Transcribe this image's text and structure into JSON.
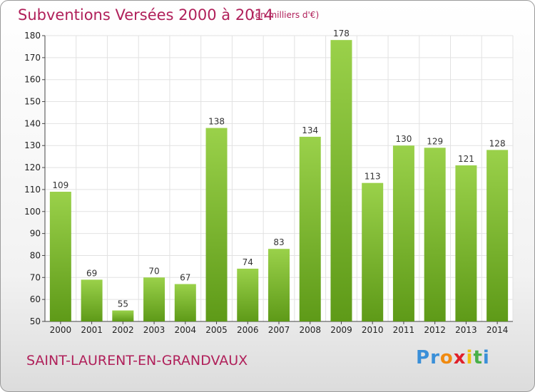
{
  "chart_data": {
    "type": "bar",
    "title": "Subventions Versées 2000 à 2014",
    "subtitle": "(en milliers d'€)",
    "categories": [
      "2000",
      "2001",
      "2002",
      "2003",
      "2004",
      "2005",
      "2006",
      "2007",
      "2008",
      "2009",
      "2010",
      "2011",
      "2012",
      "2013",
      "2014"
    ],
    "values": [
      109,
      69,
      55,
      70,
      67,
      138,
      74,
      83,
      134,
      178,
      113,
      130,
      129,
      121,
      128
    ],
    "ylim": [
      50,
      180
    ],
    "yticks": [
      50,
      60,
      70,
      80,
      90,
      100,
      110,
      120,
      130,
      140,
      150,
      160,
      170,
      180
    ],
    "grid": true,
    "bar_color_top": "#9ad14a",
    "bar_color_bottom": "#5e9a18"
  },
  "commune": "SAINT-LAURENT-EN-GRANDVAUX",
  "logo": {
    "letters": [
      "P",
      "r",
      "o",
      "x",
      "i",
      "t",
      "i"
    ],
    "colors": [
      "#3a8fd8",
      "#3a8fd8",
      "#f08a10",
      "#e0202a",
      "#f0c010",
      "#48b048",
      "#3a8fd8"
    ]
  }
}
